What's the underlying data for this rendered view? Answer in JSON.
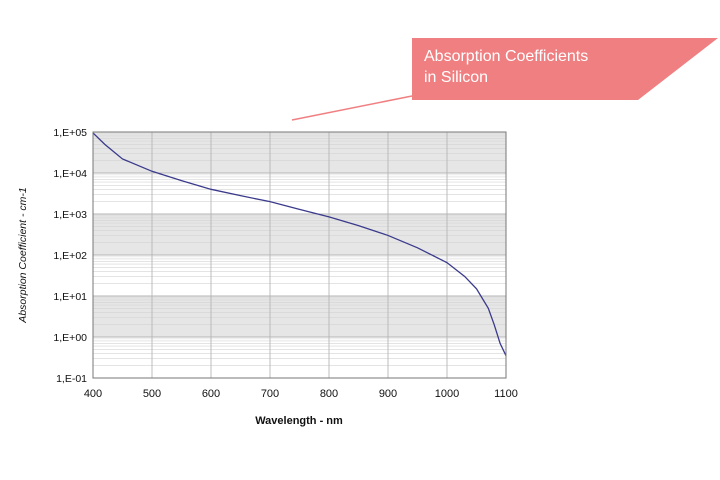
{
  "callout": {
    "lines": [
      "Absorption Coefficients",
      "in Silicon"
    ]
  },
  "chart_data": {
    "type": "line",
    "title": "Absorption Coefficients in Silicon",
    "xlabel": "Wavelength - nm",
    "ylabel": "Absorption Coefficient - cm-1",
    "xlim": [
      400,
      1100
    ],
    "ylim": [
      0.1,
      100000
    ],
    "yscale": "log",
    "grid": true,
    "x_ticks": [
      "400",
      "500",
      "600",
      "700",
      "800",
      "900",
      "1000",
      "1100"
    ],
    "y_ticks": [
      "1,E-01",
      "1,E+00",
      "1,E+01",
      "1,E+02",
      "1,E+03",
      "1,E+04",
      "1,E+05"
    ],
    "series": [
      {
        "x": [
          400,
          420,
          450,
          500,
          550,
          600,
          650,
          700,
          750,
          800,
          850,
          900,
          950,
          1000,
          1030,
          1050,
          1070,
          1080,
          1090,
          1100
        ],
        "y": [
          95000,
          50000,
          22000,
          11000,
          6500,
          4000,
          2800,
          2000,
          1300,
          850,
          520,
          300,
          150,
          65,
          30,
          15,
          5,
          2,
          0.7,
          0.35
        ]
      }
    ],
    "colors": {
      "line": "#3a3a8c",
      "grid": "#d4d4d4",
      "band": "#e6e6e6",
      "callout": "#f07f81"
    }
  }
}
